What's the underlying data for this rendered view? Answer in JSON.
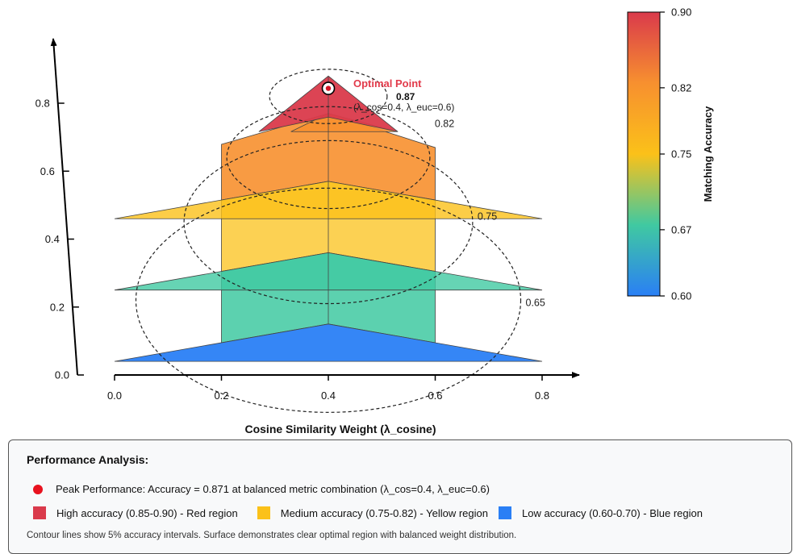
{
  "chart_data": {
    "type": "area",
    "xlabel": "Cosine Similarity Weight (λ_cosine)",
    "xticks": [
      "0.0",
      "0.2",
      "0.4",
      "0.6",
      "0.8"
    ],
    "yticks": [
      "0.0",
      "0.2",
      "0.4",
      "0.6",
      "0.8"
    ],
    "xlim": [
      0.0,
      0.8
    ],
    "ylim": [
      0.0,
      0.8
    ],
    "optimal": {
      "label": "Optimal Point",
      "value": "0.87",
      "params": "(λ_cos=0.4, λ_euc=0.6)",
      "x": 0.4,
      "y": 0.82
    },
    "contours": [
      {
        "label": "",
        "cx": 0.4,
        "cy": 0.82,
        "rx": 0.11,
        "ry": 0.08
      },
      {
        "label": "0.82",
        "cx": 0.4,
        "cy": 0.64,
        "rx": 0.19,
        "ry": 0.15
      },
      {
        "label": "0.75",
        "cx": 0.4,
        "cy": 0.45,
        "rx": 0.27,
        "ry": 0.24
      },
      {
        "label": "0.65",
        "cx": 0.4,
        "cy": 0.22,
        "rx": 0.36,
        "ry": 0.33
      }
    ],
    "surface_layers": [
      {
        "level": "blue",
        "color": "#2a7ff5",
        "base_y": 0.04,
        "peak_y": 0.15,
        "x_range": [
          0.0,
          0.8
        ]
      },
      {
        "level": "teal",
        "color": "#40c9a1",
        "base_y": 0.25,
        "peak_y": 0.36,
        "x_range": [
          0.0,
          0.8
        ]
      },
      {
        "level": "yellow",
        "color": "#fbc119",
        "base_y": 0.46,
        "peak_y": 0.57,
        "x_range": [
          0.0,
          0.8
        ]
      },
      {
        "level": "orange",
        "color": "#f7902f",
        "base_y": 0.66,
        "peak_y": 0.77,
        "x_range": [
          0.2,
          0.6
        ]
      },
      {
        "level": "red",
        "color": "#da3a4b",
        "base_y": 0.74,
        "peak_y": 0.88,
        "x_range": [
          0.27,
          0.53
        ]
      }
    ],
    "colorbar": {
      "label": "Matching Accuracy",
      "range": [
        0.6,
        0.9
      ],
      "ticks": [
        "0.90",
        "0.82",
        "0.75",
        "0.67",
        "0.60"
      ],
      "tick_values": [
        0.9,
        0.82,
        0.75,
        0.67,
        0.6
      ],
      "colors": [
        "#da3a4b",
        "#f7902f",
        "#fbc119",
        "#40c9a1",
        "#2a7ff5"
      ]
    }
  },
  "legend": {
    "title": "Performance Analysis:",
    "peak": "Peak Performance: Accuracy = 0.871 at balanced metric combination (λ_cos=0.4, λ_euc=0.6)",
    "high": "High accuracy (0.85-0.90) - Red region",
    "medium": "Medium accuracy (0.75-0.82) - Yellow region",
    "low": "Low accuracy (0.60-0.70) - Blue region",
    "note": "Contour lines show 5% accuracy intervals. Surface demonstrates clear optimal region with balanced weight distribution.",
    "colors": {
      "peak": "#e8121e",
      "high": "#da3a4b",
      "medium": "#fbc119",
      "low": "#2a7ff5"
    }
  }
}
